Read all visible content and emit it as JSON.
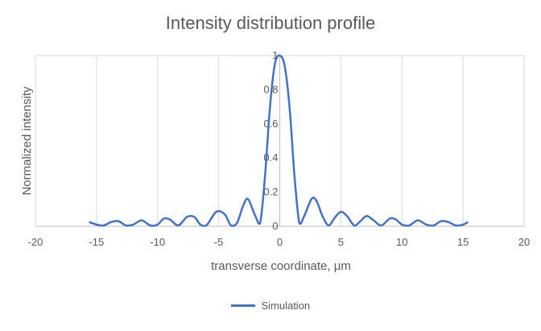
{
  "chart_data": {
    "type": "line",
    "title": "Intensity distribution profile",
    "xlabel": "transverse coordinate, μm",
    "ylabel": "Normalized intensity",
    "xlim": [
      -20,
      20
    ],
    "ylim": [
      0,
      1
    ],
    "xticks": [
      "-20",
      "-15",
      "-10",
      "-5",
      "0",
      "5",
      "10",
      "15",
      "20"
    ],
    "yticks": [
      "0",
      "0.2",
      "0.4",
      "0.6",
      "0.8",
      "1"
    ],
    "grid": true,
    "legend_position": "bottom",
    "series": [
      {
        "name": "Simulation",
        "color": "#4472C4",
        "x": [
          -15.6,
          -15.0,
          -14.4,
          -13.8,
          -13.2,
          -12.6,
          -12.0,
          -11.3,
          -10.6,
          -10.0,
          -9.5,
          -9.0,
          -8.3,
          -7.6,
          -7.0,
          -6.5,
          -6.0,
          -5.2,
          -4.5,
          -4.0,
          -3.5,
          -3.0,
          -2.6,
          -2.0,
          -1.6,
          -1.2,
          -0.8,
          -0.4,
          0.0,
          0.4,
          0.8,
          1.2,
          1.6,
          2.0,
          2.6,
          3.0,
          3.5,
          4.0,
          4.5,
          5.0,
          5.5,
          6.1,
          6.6,
          7.1,
          7.6,
          8.3,
          9.0,
          9.5,
          10.0,
          10.6,
          11.3,
          12.0,
          12.6,
          13.2,
          13.8,
          14.4,
          15.0,
          15.4
        ],
        "y": [
          0.025,
          0.01,
          0.005,
          0.025,
          0.03,
          0.005,
          0.01,
          0.035,
          0.005,
          0.01,
          0.045,
          0.04,
          0.005,
          0.055,
          0.055,
          0.01,
          0.005,
          0.085,
          0.07,
          0.005,
          0.02,
          0.12,
          0.16,
          0.06,
          0.02,
          0.3,
          0.7,
          0.95,
          1.0,
          0.94,
          0.7,
          0.3,
          0.02,
          0.06,
          0.16,
          0.15,
          0.06,
          0.005,
          0.05,
          0.085,
          0.06,
          0.005,
          0.03,
          0.06,
          0.04,
          0.005,
          0.045,
          0.04,
          0.01,
          0.005,
          0.035,
          0.01,
          0.005,
          0.03,
          0.025,
          0.005,
          0.01,
          0.025
        ]
      }
    ]
  }
}
